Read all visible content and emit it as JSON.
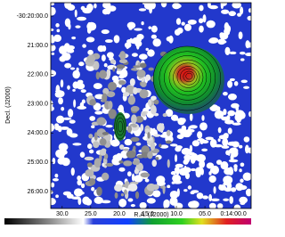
{
  "chart_data": {
    "type": "image",
    "xlabel": "R.A. (J2000)",
    "ylabel": "Decl. (J2000)",
    "xlim": [
      32,
      -3.1
    ],
    "ylim": [
      -26.58,
      -19.54
    ],
    "xticks": [
      {
        "value": 30,
        "label": "30.0"
      },
      {
        "value": 25,
        "label": "25.0"
      },
      {
        "value": 20,
        "label": "20.0"
      },
      {
        "value": 15,
        "label": "15.0"
      },
      {
        "value": 10,
        "label": "10.0"
      },
      {
        "value": 5,
        "label": "05.0"
      },
      {
        "value": 0,
        "label": "0:14:00.0"
      }
    ],
    "yticks": [
      {
        "value": -20,
        "label": "-30:20:00.0"
      },
      {
        "value": -21,
        "label": "21:00.0"
      },
      {
        "value": -22,
        "label": "22:00.0"
      },
      {
        "value": -23,
        "label": "23:00.0"
      },
      {
        "value": -24,
        "label": "24:00.0"
      },
      {
        "value": -25,
        "label": "25:00.0"
      },
      {
        "value": -26,
        "label": "26:00.0"
      }
    ]
  }
}
